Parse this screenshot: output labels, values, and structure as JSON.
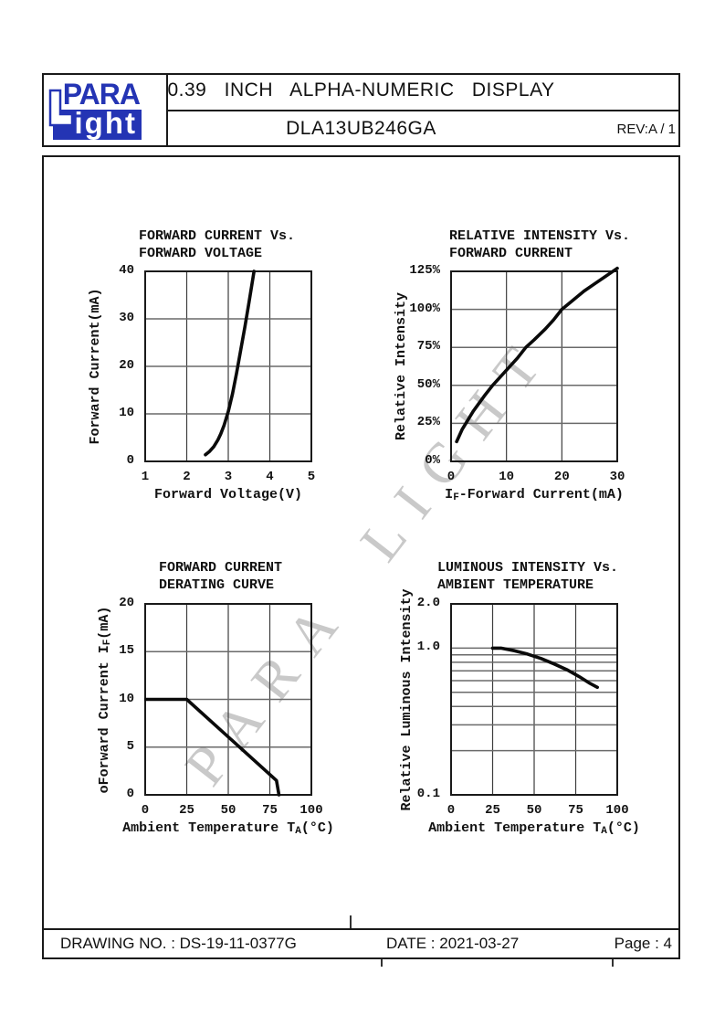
{
  "header": {
    "logo": {
      "top_text": "PARA",
      "bottom_text": "ight"
    },
    "title": "0.39 INCH ALPHA-NUMERIC DISPLAY",
    "part_number": "DLA13UB246GA",
    "revision": "REV:A / 1"
  },
  "watermark": {
    "text": "PARA LIGHT"
  },
  "footer": {
    "drawing_no": "DRAWING NO. : DS-19-11-0377G",
    "date": "DATE : 2021-03-27",
    "page": "Page : 4"
  },
  "colors": {
    "logo_blue": "#2434b4",
    "frame_black": "#1a1a1a",
    "grid_gray": "#6a6a6a",
    "curve_black": "#0a0a0a",
    "watermark_gray": "#c9c9c9"
  },
  "chart_data": [
    {
      "id": "fc-vs-fv",
      "type": "line",
      "title_lines": [
        "FORWARD CURRENT Vs.",
        "FORWARD VOLTAGE"
      ],
      "ylabel_parts": [
        {
          "t": "Forward Current(mA)"
        }
      ],
      "xlabel_parts": [
        {
          "t": "Forward Voltage(V)"
        }
      ],
      "x": {
        "min": 1,
        "max": 5,
        "ticks": [
          1,
          2,
          3,
          4,
          5
        ],
        "labels": [
          "1",
          "2",
          "3",
          "4",
          "5"
        ],
        "grid": [
          2,
          3,
          4
        ]
      },
      "y": {
        "min": 0,
        "max": 40,
        "scale": "linear",
        "ticks": [
          0,
          10,
          20,
          30,
          40
        ],
        "labels": [
          "0",
          "10",
          "20",
          "30",
          "40"
        ],
        "grid": [
          10,
          20,
          30
        ]
      },
      "points": [
        [
          2.45,
          1.4
        ],
        [
          2.55,
          2.1
        ],
        [
          2.65,
          3.1
        ],
        [
          2.75,
          4.5
        ],
        [
          2.82,
          5.8
        ],
        [
          2.9,
          7.6
        ],
        [
          3.0,
          10.5
        ],
        [
          3.1,
          14.2
        ],
        [
          3.2,
          18.6
        ],
        [
          3.3,
          23.4
        ],
        [
          3.4,
          28.3
        ],
        [
          3.5,
          33.6
        ],
        [
          3.62,
          40
        ]
      ]
    },
    {
      "id": "ri-vs-if",
      "type": "line",
      "title_lines": [
        "RELATIVE INTENSITY Vs.",
        "FORWARD CURRENT"
      ],
      "ylabel_parts": [
        {
          "t": "Relative Intensity"
        }
      ],
      "xlabel_parts": [
        {
          "t": "I"
        },
        {
          "t": "F",
          "small": true
        },
        {
          "t": "-Forward Current(mA)"
        }
      ],
      "x": {
        "min": 0,
        "max": 30,
        "ticks": [
          0,
          10,
          20,
          30
        ],
        "labels": [
          "0",
          "10",
          "20",
          "30"
        ],
        "grid": [
          10,
          20
        ]
      },
      "y": {
        "min": 0,
        "max": 125,
        "scale": "linear",
        "ticks": [
          0,
          25,
          50,
          75,
          100,
          125
        ],
        "labels": [
          "0%",
          "25%",
          "50%",
          "75%",
          "100%",
          "125%"
        ],
        "grid": [
          25,
          50,
          75,
          100
        ]
      },
      "points": [
        [
          1,
          13
        ],
        [
          2,
          21
        ],
        [
          3,
          27
        ],
        [
          4,
          33
        ],
        [
          5,
          38
        ],
        [
          6,
          43
        ],
        [
          7.5,
          50
        ],
        [
          9,
          56
        ],
        [
          10.5,
          62
        ],
        [
          12,
          68
        ],
        [
          13.5,
          75
        ],
        [
          15,
          80
        ],
        [
          17,
          87
        ],
        [
          18.5,
          93
        ],
        [
          20,
          100
        ],
        [
          22,
          106
        ],
        [
          24,
          112
        ],
        [
          26,
          117
        ],
        [
          28,
          122
        ],
        [
          30,
          127
        ]
      ]
    },
    {
      "id": "fc-derating",
      "type": "line",
      "title_lines": [
        "FORWARD CURRENT",
        "DERATING CURVE"
      ],
      "ylabel_parts": [
        {
          "t": "oForward Current I"
        },
        {
          "t": "F",
          "small": true
        },
        {
          "t": "(mA)"
        }
      ],
      "xlabel_parts": [
        {
          "t": "Ambient Temperature T"
        },
        {
          "t": "A",
          "small": true
        },
        {
          "t": "(°C)"
        }
      ],
      "x": {
        "min": 0,
        "max": 100,
        "ticks": [
          0,
          25,
          50,
          75,
          100
        ],
        "labels": [
          "0",
          "25",
          "50",
          "75",
          "100"
        ],
        "grid": [
          25,
          50,
          75
        ]
      },
      "y": {
        "min": 0,
        "max": 20,
        "scale": "linear",
        "ticks": [
          0,
          5,
          10,
          15,
          20
        ],
        "labels": [
          "0",
          "5",
          "10",
          "15",
          "20"
        ],
        "grid": [
          5,
          10,
          15
        ]
      },
      "points": [
        [
          0,
          10
        ],
        [
          25,
          10
        ],
        [
          79,
          1.5
        ],
        [
          80.5,
          0
        ]
      ]
    },
    {
      "id": "li-vs-ta",
      "type": "line",
      "title_lines": [
        "LUMINOUS INTENSITY Vs.",
        "AMBIENT TEMPERATURE"
      ],
      "ylabel_parts": [
        {
          "t": "Relative Luminous Intensity"
        }
      ],
      "xlabel_parts": [
        {
          "t": "Ambient Temperature T"
        },
        {
          "t": "A",
          "small": true
        },
        {
          "t": "(°C)"
        }
      ],
      "x": {
        "min": 0,
        "max": 100,
        "ticks": [
          0,
          25,
          50,
          75,
          100
        ],
        "labels": [
          "0",
          "25",
          "50",
          "75",
          "100"
        ],
        "grid": [
          25,
          50,
          75
        ]
      },
      "y": {
        "min": 0.1,
        "max": 2.0,
        "scale": "log",
        "ticks": [
          2.0,
          1.0,
          0.1
        ],
        "labels": [
          "2.0",
          "1.0",
          "0.1"
        ],
        "grid": [
          1.0,
          0.9,
          0.8,
          0.7,
          0.6,
          0.5,
          0.4,
          0.3,
          0.2
        ]
      },
      "points": [
        [
          25,
          1.0
        ],
        [
          30,
          1.0
        ],
        [
          38,
          0.96
        ],
        [
          46,
          0.91
        ],
        [
          54,
          0.85
        ],
        [
          62,
          0.78
        ],
        [
          70,
          0.71
        ],
        [
          78,
          0.63
        ],
        [
          83,
          0.58
        ],
        [
          88,
          0.54
        ]
      ]
    }
  ]
}
